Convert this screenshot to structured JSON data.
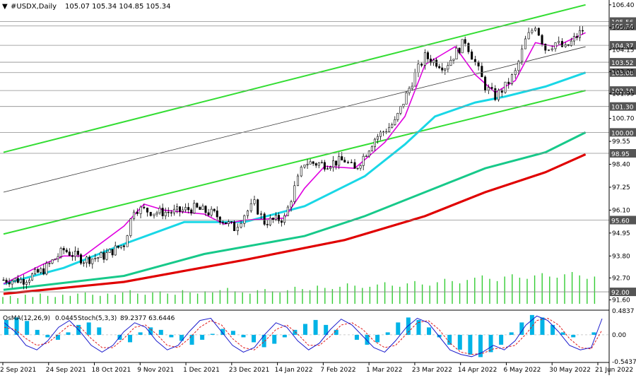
{
  "header": {
    "symbol_label": "#USDX,Daily",
    "ohlc": "105.07 105.34 104.85 105.34"
  },
  "osc_header": {
    "osma_label": "OsMA(12,26,9)",
    "osma_value": "0.0445",
    "stoch_label": "Stoch(5,3,3)",
    "stoch_values": "89.2377 63.6446"
  },
  "colors": {
    "bull_candle": "#000000",
    "bear_candle": "#000000",
    "ma_fast": "#e000e0",
    "ma_cyan": "#19d7e6",
    "ma_green": "#17c98a",
    "ma_red": "#e00000",
    "channel": "#33dd33",
    "volume": "#33cc33",
    "osma": "#00b3e6",
    "stoch_main": "#1a1acc",
    "stoch_signal": "#e01a1a",
    "level_line": "#8c8c8c"
  },
  "chart_data": [
    {
      "type": "candlestick",
      "symbol": "#USDX",
      "timeframe": "Daily",
      "x_labels": [
        "2 Sep 2021",
        "24 Sep 2021",
        "18 Oct 2021",
        "9 Nov 2021",
        "1 Dec 2021",
        "23 Dec 2021",
        "14 Jan 2022",
        "7 Feb 2022",
        "1 Mar 2022",
        "23 Mar 2022",
        "14 Apr 2022",
        "6 May 2022",
        "30 May 2022",
        "21 Jun 2022"
      ],
      "price_ticks": [
        "106.40",
        "105.26",
        "104.15",
        "103.05",
        "101.95",
        "100.70",
        "99.55",
        "98.40",
        "97.25",
        "96.10",
        "94.95",
        "93.80",
        "92.70",
        "91.60"
      ],
      "ylim": [
        91.4,
        106.5
      ],
      "level_labels": [
        "105.56",
        "105.34",
        "104.37",
        "103.52",
        "103.00",
        "102.10",
        "101.30",
        "100.00",
        "98.95",
        "95.60",
        "92.00"
      ],
      "levels": [
        105.56,
        105.34,
        104.37,
        103.52,
        103.0,
        102.1,
        101.3,
        100.0,
        98.95,
        95.6,
        92.0
      ],
      "x_range_days": [
        0,
        300
      ],
      "monthly_closes": [
        [
          0,
          92.6
        ],
        [
          10,
          92.6
        ],
        [
          20,
          93.1
        ],
        [
          30,
          94.1
        ],
        [
          40,
          93.6
        ],
        [
          50,
          93.8
        ],
        [
          60,
          94.4
        ],
        [
          65,
          96.2
        ],
        [
          70,
          96.1
        ],
        [
          75,
          96.0
        ],
        [
          85,
          96.0
        ],
        [
          95,
          96.2
        ],
        [
          105,
          95.9
        ],
        [
          115,
          95.2
        ],
        [
          120,
          95.9
        ],
        [
          125,
          96.4
        ],
        [
          130,
          95.5
        ],
        [
          140,
          95.7
        ],
        [
          145,
          97.2
        ],
        [
          150,
          98.5
        ],
        [
          160,
          98.4
        ],
        [
          170,
          98.6
        ],
        [
          175,
          98.1
        ],
        [
          185,
          99.7
        ],
        [
          195,
          100.5
        ],
        [
          205,
          102.9
        ],
        [
          210,
          103.8
        ],
        [
          220,
          103.3
        ],
        [
          230,
          104.6
        ],
        [
          235,
          103.5
        ],
        [
          240,
          102.3
        ],
        [
          245,
          101.8
        ],
        [
          250,
          102.3
        ],
        [
          255,
          103.0
        ],
        [
          260,
          104.6
        ],
        [
          265,
          105.4
        ],
        [
          270,
          104.2
        ],
        [
          275,
          104.5
        ],
        [
          280,
          104.2
        ],
        [
          290,
          105.3
        ]
      ],
      "ma_fast_points": [
        [
          0,
          92.4
        ],
        [
          20,
          93.4
        ],
        [
          30,
          93.8
        ],
        [
          40,
          93.8
        ],
        [
          60,
          95.3
        ],
        [
          70,
          96.4
        ],
        [
          80,
          96.1
        ],
        [
          100,
          95.9
        ],
        [
          110,
          95.4
        ],
        [
          120,
          95.6
        ],
        [
          140,
          95.7
        ],
        [
          150,
          97.2
        ],
        [
          160,
          98.3
        ],
        [
          175,
          98.2
        ],
        [
          190,
          99.5
        ],
        [
          200,
          100.8
        ],
        [
          210,
          103.4
        ],
        [
          225,
          104.3
        ],
        [
          235,
          102.9
        ],
        [
          245,
          102.0
        ],
        [
          255,
          102.6
        ],
        [
          265,
          104.5
        ],
        [
          275,
          104.3
        ],
        [
          290,
          105.0
        ]
      ],
      "ma_cyan_points": [
        [
          0,
          92.4
        ],
        [
          30,
          93.2
        ],
        [
          60,
          94.4
        ],
        [
          90,
          95.5
        ],
        [
          120,
          95.5
        ],
        [
          150,
          96.3
        ],
        [
          180,
          97.8
        ],
        [
          200,
          99.4
        ],
        [
          215,
          100.8
        ],
        [
          235,
          101.5
        ],
        [
          250,
          101.8
        ],
        [
          270,
          102.3
        ],
        [
          290,
          103.0
        ]
      ],
      "ma_green_points": [
        [
          0,
          92.1
        ],
        [
          60,
          92.8
        ],
        [
          100,
          93.9
        ],
        [
          150,
          94.8
        ],
        [
          180,
          95.8
        ],
        [
          210,
          97.0
        ],
        [
          240,
          98.2
        ],
        [
          270,
          99.0
        ],
        [
          290,
          100.0
        ]
      ],
      "ma_red_points": [
        [
          0,
          91.9
        ],
        [
          60,
          92.5
        ],
        [
          120,
          93.6
        ],
        [
          170,
          94.6
        ],
        [
          210,
          95.8
        ],
        [
          240,
          97.0
        ],
        [
          270,
          98.0
        ],
        [
          290,
          98.9
        ]
      ],
      "channel_lines": [
        {
          "from": [
            0,
            99.0
          ],
          "to": [
            290,
            106.4
          ]
        },
        {
          "from": [
            0,
            94.9
          ],
          "to": [
            290,
            102.1
          ]
        },
        {
          "from": [
            0,
            97.0
          ],
          "to": [
            290,
            104.3
          ]
        }
      ],
      "volume": [
        6,
        7,
        5,
        8,
        6,
        9,
        7,
        6,
        8,
        7,
        9,
        10,
        8,
        7,
        9,
        8,
        10,
        12,
        9,
        8,
        10,
        11,
        9,
        8,
        12,
        10,
        9,
        11,
        10,
        12,
        14,
        11,
        10,
        9,
        12,
        13,
        11,
        10,
        12,
        15,
        13,
        12,
        16,
        14,
        13,
        15,
        18,
        16,
        14,
        15,
        17,
        19,
        16,
        15,
        18,
        20,
        17,
        16,
        19,
        22,
        20,
        18,
        21,
        23,
        25,
        22,
        20,
        24,
        26,
        23,
        22,
        25,
        27,
        24,
        23,
        26,
        28,
        25,
        22,
        24
      ]
    },
    {
      "type": "oscillator",
      "name": "OsMA / Stoch",
      "tick_labels": [
        "0.4837",
        "0.00",
        "-0.5437"
      ],
      "ylim": [
        -0.5437,
        0.4837
      ],
      "osma": [
        0.3,
        0.35,
        0.28,
        0.1,
        -0.05,
        -0.1,
        0.05,
        0.2,
        0.25,
        0.15,
        0.0,
        -0.1,
        -0.15,
        0.05,
        0.15,
        0.1,
        -0.05,
        -0.12,
        -0.2,
        -0.1,
        0.02,
        0.12,
        0.08,
        -0.05,
        -0.15,
        -0.25,
        -0.18,
        -0.05,
        0.1,
        0.22,
        0.3,
        0.2,
        0.1,
        0.0,
        -0.1,
        -0.2,
        -0.15,
        0.05,
        0.25,
        0.35,
        0.3,
        0.15,
        -0.05,
        -0.2,
        -0.3,
        -0.4,
        -0.45,
        -0.35,
        -0.2,
        0.05,
        0.25,
        0.4,
        0.35,
        0.2,
        0.05,
        -0.05,
        0.0,
        0.05
      ],
      "stoch_main": [
        80,
        60,
        30,
        20,
        40,
        70,
        85,
        60,
        30,
        15,
        30,
        60,
        80,
        70,
        40,
        20,
        30,
        60,
        85,
        90,
        60,
        30,
        15,
        25,
        55,
        80,
        70,
        40,
        20,
        35,
        65,
        88,
        75,
        50,
        25,
        15,
        40,
        70,
        90,
        80,
        50,
        20,
        10,
        5,
        15,
        30,
        20,
        40,
        75,
        95,
        85,
        60,
        30,
        20,
        25,
        89
      ],
      "stoch_signal": [
        70,
        65,
        45,
        30,
        35,
        55,
        75,
        70,
        45,
        25,
        25,
        45,
        70,
        75,
        55,
        30,
        25,
        45,
        70,
        85,
        75,
        45,
        25,
        20,
        40,
        65,
        75,
        55,
        30,
        30,
        50,
        75,
        80,
        65,
        40,
        25,
        30,
        55,
        80,
        85,
        65,
        35,
        15,
        10,
        12,
        22,
        25,
        30,
        55,
        85,
        90,
        75,
        45,
        25,
        22,
        64
      ]
    }
  ]
}
